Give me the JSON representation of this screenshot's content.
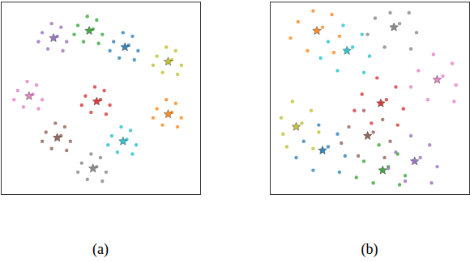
{
  "chart_data": [
    {
      "type": "scatter",
      "title": "(a)",
      "xlim": [
        0,
        100
      ],
      "ylim": [
        0,
        100
      ],
      "tick_labels": false,
      "series": [
        {
          "color": "#9467bd",
          "marker": "circle",
          "x": [
            19,
            29,
            32,
            22,
            27,
            17,
            30,
            24
          ],
          "values": [
            86,
            89,
            81,
            77,
            84,
            81,
            76,
            91
          ]
        },
        {
          "color": "#2ca02c",
          "marker": "circle",
          "x": [
            38,
            48,
            51,
            41,
            46,
            36,
            49,
            43
          ],
          "values": [
            90,
            93,
            85,
            81,
            88,
            85,
            80,
            95
          ]
        },
        {
          "color": "#1f77b4",
          "marker": "circle",
          "x": [
            57,
            67,
            70,
            60,
            65,
            55,
            68,
            62
          ],
          "values": [
            81,
            84,
            76,
            72,
            79,
            76,
            71,
            86
          ]
        },
        {
          "color": "#bcbd22",
          "marker": "circle",
          "x": [
            80,
            90,
            93,
            83,
            88,
            78,
            91,
            85
          ],
          "values": [
            73,
            76,
            68,
            64,
            71,
            68,
            63,
            78
          ]
        },
        {
          "color": "#e377c2",
          "marker": "circle",
          "x": [
            6,
            16,
            19,
            9,
            14,
            4,
            17,
            11
          ],
          "values": [
            54,
            57,
            49,
            45,
            52,
            49,
            44,
            59
          ]
        },
        {
          "color": "#d62728",
          "marker": "circle",
          "x": [
            42,
            52,
            55,
            45,
            50,
            40,
            53,
            47
          ],
          "values": [
            51,
            54,
            46,
            42,
            49,
            46,
            41,
            56
          ]
        },
        {
          "color": "#ff7f0e",
          "marker": "circle",
          "x": [
            80,
            90,
            93,
            83,
            88,
            78,
            91,
            85
          ],
          "values": [
            44,
            47,
            39,
            35,
            42,
            39,
            34,
            49
          ]
        },
        {
          "color": "#17becf",
          "marker": "circle",
          "x": [
            56,
            66,
            69,
            59,
            64,
            54,
            67,
            61
          ],
          "values": [
            29,
            32,
            24,
            20,
            27,
            24,
            19,
            34
          ]
        },
        {
          "color": "#8c564b",
          "marker": "circle",
          "x": [
            21,
            31,
            34,
            24,
            29,
            19,
            32,
            26
          ],
          "values": [
            31,
            34,
            26,
            22,
            29,
            26,
            21,
            36
          ]
        },
        {
          "color": "#7f7f7f",
          "marker": "circle",
          "x": [
            40,
            50,
            53,
            43,
            48,
            38,
            51,
            45
          ],
          "values": [
            14,
            17,
            9,
            5,
            12,
            9,
            4,
            19
          ]
        },
        {
          "marker": "star",
          "colors": [
            "#9467bd",
            "#2ca02c",
            "#1f77b4",
            "#bcbd22",
            "#e377c2",
            "#d62728",
            "#ff7f0e",
            "#17becf",
            "#8c564b",
            "#7f7f7f"
          ],
          "x": [
            25,
            44,
            63,
            86,
            12,
            48,
            86,
            62,
            27,
            46
          ],
          "values": [
            83,
            87,
            78,
            70,
            51,
            48,
            41,
            26,
            28,
            11
          ]
        }
      ]
    },
    {
      "type": "scatter",
      "title": "(b)",
      "xlim": [
        0,
        100
      ],
      "ylim": [
        0,
        100
      ],
      "tick_labels": false,
      "series": [
        {
          "color": "#ff7f0e",
          "marker": "circle",
          "x": [
            12,
            30,
            34,
            17,
            25,
            8,
            31,
            20
          ],
          "values": [
            92,
            96,
            84,
            76,
            89,
            83,
            75,
            98
          ]
        },
        {
          "color": "#7f7f7f",
          "marker": "circle",
          "x": [
            53,
            71,
            75,
            58,
            66,
            49,
            72,
            61
          ],
          "values": [
            94,
            97,
            86,
            78,
            91,
            85,
            77,
            97
          ]
        },
        {
          "color": "#17becf",
          "marker": "circle",
          "x": [
            28,
            46,
            50,
            33,
            41,
            24,
            47,
            36
          ],
          "values": [
            81,
            85,
            73,
            65,
            78,
            72,
            64,
            90
          ]
        },
        {
          "color": "#e377c2",
          "marker": "circle",
          "x": [
            76,
            94,
            96,
            81,
            89,
            72,
            95,
            84
          ],
          "values": [
            65,
            69,
            57,
            49,
            62,
            56,
            48,
            74
          ]
        },
        {
          "color": "#d62728",
          "marker": "circle",
          "x": [
            46,
            64,
            68,
            51,
            59,
            42,
            65,
            54
          ],
          "values": [
            52,
            56,
            44,
            36,
            49,
            43,
            35,
            61
          ]
        },
        {
          "color": "#bcbd22",
          "marker": "circle",
          "x": [
            3,
            19,
            23,
            6,
            14,
            4,
            20,
            9
          ],
          "values": [
            39,
            43,
            31,
            23,
            36,
            30,
            22,
            48
          ]
        },
        {
          "color": "#8c564b",
          "marker": "circle",
          "x": [
            39,
            57,
            61,
            44,
            52,
            35,
            58,
            47
          ],
          "values": [
            34,
            38,
            26,
            18,
            31,
            25,
            17,
            43
          ]
        },
        {
          "color": "#1f77b4",
          "marker": "circle",
          "x": [
            15,
            33,
            37,
            20,
            28,
            11,
            34,
            23
          ],
          "values": [
            26,
            30,
            18,
            10,
            23,
            17,
            9,
            35
          ]
        },
        {
          "color": "#2ca02c",
          "marker": "circle",
          "x": [
            47,
            65,
            69,
            52,
            60,
            43,
            66,
            55
          ],
          "values": [
            15,
            19,
            7,
            3,
            12,
            6,
            2,
            24
          ]
        },
        {
          "color": "#9467bd",
          "marker": "circle",
          "x": [
            64,
            82,
            86,
            69,
            77,
            60,
            83,
            72
          ],
          "values": [
            20,
            24,
            12,
            4,
            17,
            11,
            3,
            29
          ]
        },
        {
          "marker": "star",
          "colors": [
            "#ff7f0e",
            "#7f7f7f",
            "#17becf",
            "#e377c2",
            "#d62728",
            "#bcbd22",
            "#8c564b",
            "#1f77b4",
            "#2ca02c",
            "#9467bd"
          ],
          "x": [
            22,
            63,
            38,
            86,
            56,
            11,
            49,
            25,
            57,
            74
          ],
          "values": [
            87,
            89,
            76,
            60,
            47,
            34,
            29,
            21,
            10,
            15
          ]
        }
      ]
    }
  ]
}
